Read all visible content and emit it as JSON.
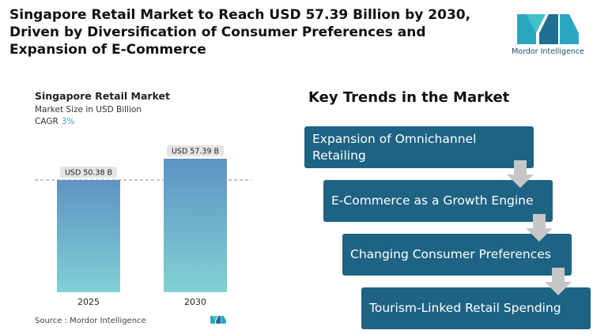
{
  "headline": "Singapore Retail Market to Reach USD 57.39 Billion by 2030, Driven by Diversification of Consumer Preferences and Expansion of E-Commerce",
  "logo": {
    "text": "Mordor Intelligence",
    "icon": "mordor-intelligence-logo"
  },
  "chart_panel": {
    "title": "Singapore Retail Market",
    "subtitle": "Market Size in USD Billion",
    "cagr_label": "CAGR",
    "cagr_value": "3%",
    "source": "Source :  Mordor Intelligence"
  },
  "chart_data": {
    "type": "bar",
    "title": "Singapore Retail Market",
    "ylabel": "Market Size in USD Billion",
    "categories": [
      "2025",
      "2030"
    ],
    "values": [
      50.38,
      57.39
    ],
    "data_labels": [
      "USD 50.38 B",
      "USD 57.39 B"
    ],
    "reference_line": 50.38,
    "ylim": [
      0,
      60
    ],
    "grid": false,
    "colors": {
      "bar_top": "#5f93c3",
      "bar_bottom": "#7fd1d4",
      "label_bg": "#e4e4e4"
    }
  },
  "trends": {
    "title": "Key Trends in the Market",
    "items": [
      "Expansion of Omnichannel Retailing",
      "E-Commerce as a Growth Engine",
      "Changing Consumer Preferences",
      "Tourism-Linked Retail Spending"
    ],
    "colors": {
      "box": "#1e6384",
      "arrow": "#c4c6c8"
    }
  }
}
